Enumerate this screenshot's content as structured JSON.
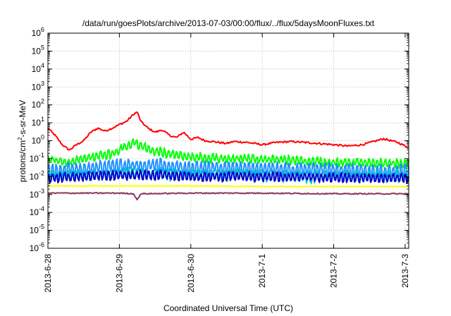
{
  "chart_data": {
    "type": "line",
    "title": "/data/run/goesPlots/archive/2013-07-03/00:00/flux/../flux/5daysMoonFluxes.txt",
    "xlabel": "Coordinated Universal Time (UTC)",
    "ylabel_parts": {
      "pre": "protons/cm",
      "sup": "2",
      "post": "-s-sr-MeV"
    },
    "yscale": "log",
    "ylim_exp": [
      -6,
      6
    ],
    "y_ticks": [
      {
        "base": "10",
        "exp": "-6"
      },
      {
        "base": "10",
        "exp": "-5"
      },
      {
        "base": "10",
        "exp": "-4"
      },
      {
        "base": "10",
        "exp": "-3"
      },
      {
        "base": "10",
        "exp": "-2"
      },
      {
        "base": "10",
        "exp": "-1"
      },
      {
        "base": "10",
        "exp": "0"
      },
      {
        "base": "10",
        "exp": "1"
      },
      {
        "base": "10",
        "exp": "2"
      },
      {
        "base": "10",
        "exp": "3"
      },
      {
        "base": "10",
        "exp": "4"
      },
      {
        "base": "10",
        "exp": "5"
      },
      {
        "base": "10",
        "exp": "6"
      }
    ],
    "x_ticks": [
      "2013-6-28",
      "2013-6-29",
      "2013-6-30",
      "2013-7-1",
      "2013-7-2",
      "2013-7-3"
    ],
    "xlim_days": [
      0,
      5.05
    ],
    "grid": true,
    "legend": "none",
    "series": [
      {
        "color": "#ff0000",
        "noise": 0.05,
        "osc": 0.0,
        "points": [
          [
            0,
            5
          ],
          [
            0.1,
            2
          ],
          [
            0.2,
            0.6
          ],
          [
            0.3,
            0.3
          ],
          [
            0.4,
            0.6
          ],
          [
            0.5,
            1
          ],
          [
            0.6,
            3
          ],
          [
            0.7,
            5
          ],
          [
            0.8,
            3.5
          ],
          [
            0.9,
            5
          ],
          [
            1.0,
            8
          ],
          [
            1.1,
            12
          ],
          [
            1.2,
            30
          ],
          [
            1.25,
            40
          ],
          [
            1.3,
            12
          ],
          [
            1.4,
            5
          ],
          [
            1.5,
            3
          ],
          [
            1.6,
            4
          ],
          [
            1.7,
            2
          ],
          [
            1.8,
            1.5
          ],
          [
            1.9,
            3
          ],
          [
            2.0,
            1.2
          ],
          [
            2.1,
            1.5
          ],
          [
            2.2,
            1.0
          ],
          [
            2.3,
            0.9
          ],
          [
            2.4,
            0.8
          ],
          [
            2.5,
            0.7
          ],
          [
            2.6,
            0.9
          ],
          [
            2.8,
            0.8
          ],
          [
            3.0,
            0.6
          ],
          [
            3.2,
            0.8
          ],
          [
            3.4,
            0.9
          ],
          [
            3.6,
            0.8
          ],
          [
            3.8,
            0.7
          ],
          [
            4.0,
            0.6
          ],
          [
            4.2,
            0.5
          ],
          [
            4.4,
            0.6
          ],
          [
            4.6,
            1.0
          ],
          [
            4.7,
            1.3
          ],
          [
            4.8,
            1.0
          ],
          [
            4.9,
            0.8
          ],
          [
            5.05,
            0.4
          ]
        ]
      },
      {
        "color": "#00ff00",
        "noise": 0.09,
        "osc": 0.22,
        "points": [
          [
            0,
            0.1
          ],
          [
            0.3,
            0.06
          ],
          [
            0.5,
            0.1
          ],
          [
            0.7,
            0.15
          ],
          [
            0.9,
            0.2
          ],
          [
            1.0,
            0.3
          ],
          [
            1.1,
            0.5
          ],
          [
            1.2,
            0.8
          ],
          [
            1.3,
            0.5
          ],
          [
            1.5,
            0.25
          ],
          [
            1.8,
            0.15
          ],
          [
            2.0,
            0.12
          ],
          [
            2.5,
            0.1
          ],
          [
            3.0,
            0.1
          ],
          [
            3.5,
            0.08
          ],
          [
            4.0,
            0.06
          ],
          [
            4.5,
            0.06
          ],
          [
            5.05,
            0.05
          ]
        ]
      },
      {
        "color": "#1e90ff",
        "noise": 0.1,
        "osc": 0.35,
        "points": [
          [
            0,
            0.02
          ],
          [
            0.3,
            0.025
          ],
          [
            0.6,
            0.03
          ],
          [
            1.0,
            0.04
          ],
          [
            1.5,
            0.04
          ],
          [
            2.0,
            0.03
          ],
          [
            2.5,
            0.03
          ],
          [
            3.0,
            0.03
          ],
          [
            3.5,
            0.025
          ],
          [
            4.0,
            0.025
          ],
          [
            4.5,
            0.02
          ],
          [
            5.05,
            0.02
          ]
        ]
      },
      {
        "color": "#00c8c8",
        "noise": 0.08,
        "osc": 0.3,
        "points": [
          [
            0,
            0.01
          ],
          [
            0.5,
            0.012
          ],
          [
            1.0,
            0.015
          ],
          [
            1.5,
            0.015
          ],
          [
            2.0,
            0.012
          ],
          [
            2.5,
            0.012
          ],
          [
            3.0,
            0.012
          ],
          [
            3.5,
            0.01
          ],
          [
            4.0,
            0.01
          ],
          [
            4.5,
            0.01
          ],
          [
            5.05,
            0.01
          ]
        ]
      },
      {
        "color": "#0000cd",
        "noise": 0.06,
        "osc": 0.25,
        "points": [
          [
            0,
            0.008
          ],
          [
            0.5,
            0.01
          ],
          [
            1.0,
            0.012
          ],
          [
            1.5,
            0.012
          ],
          [
            2.0,
            0.01
          ],
          [
            2.5,
            0.01
          ],
          [
            3.0,
            0.01
          ],
          [
            3.5,
            0.009
          ],
          [
            4.0,
            0.009
          ],
          [
            4.5,
            0.008
          ],
          [
            5.05,
            0.008
          ]
        ]
      },
      {
        "color": "#ffff00",
        "noise": 0.02,
        "osc": 0.0,
        "points": [
          [
            0,
            0.003
          ],
          [
            1.0,
            0.003
          ],
          [
            2.0,
            0.003
          ],
          [
            3.0,
            0.0028
          ],
          [
            4.0,
            0.0028
          ],
          [
            5.05,
            0.0028
          ]
        ]
      },
      {
        "color": "#8b3a62",
        "noise": 0.03,
        "osc": 0.0,
        "points": [
          [
            0,
            0.0012
          ],
          [
            1.0,
            0.0012
          ],
          [
            1.2,
            0.0011
          ],
          [
            1.25,
            0.0005
          ],
          [
            1.3,
            0.0011
          ],
          [
            2.0,
            0.0012
          ],
          [
            3.0,
            0.0012
          ],
          [
            4.0,
            0.0011
          ],
          [
            5.05,
            0.0011
          ]
        ]
      }
    ]
  }
}
